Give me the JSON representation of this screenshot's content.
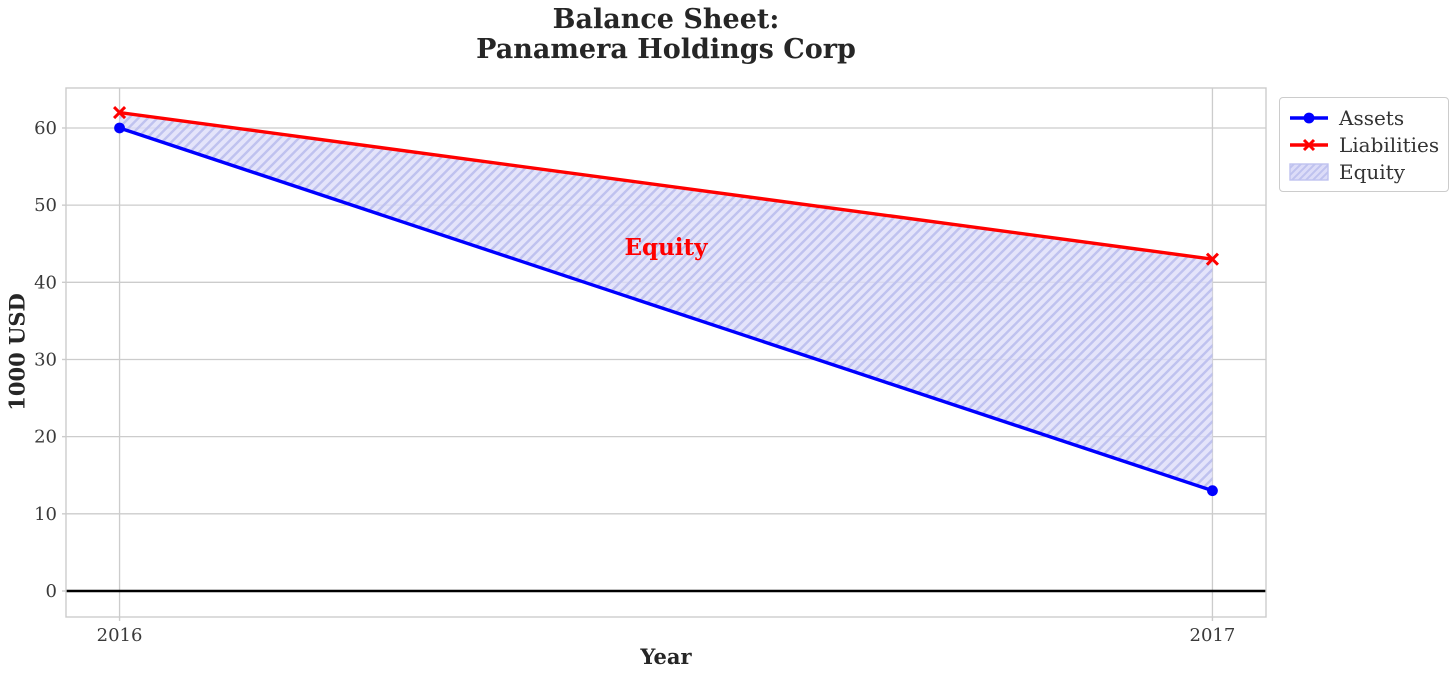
{
  "chart_data": {
    "type": "line",
    "title": "Balance Sheet:\nPanamera Holdings Corp",
    "title_lines": [
      "Balance Sheet:",
      "Panamera Holdings Corp"
    ],
    "xlabel": "Year",
    "ylabel": "1000 USD",
    "x": [
      2016,
      2017
    ],
    "series": [
      {
        "name": "Assets",
        "values": [
          60,
          13
        ],
        "color": "#0000ff",
        "marker": "circle"
      },
      {
        "name": "Liabilities",
        "values": [
          62,
          43
        ],
        "color": "#ff0000",
        "marker": "x"
      }
    ],
    "area": {
      "label": "Equity",
      "between": [
        "Assets",
        "Liabilities"
      ],
      "fill_color": "#dcdcf8",
      "hatch_color": "#bfc2ef",
      "hatch": "//"
    },
    "annotation": {
      "text": "Equity",
      "x": 2016.5,
      "y": 44.5,
      "color": "#ff0000"
    },
    "axes": {
      "xticks": [
        2016,
        2017
      ],
      "yticks": [
        0,
        10,
        20,
        30,
        40,
        50,
        60
      ],
      "xlim": [
        2015.951,
        2017.049
      ],
      "ylim": [
        -3.37,
        65.18
      ],
      "grid": true,
      "zero_line": 0
    },
    "legend": {
      "position": "outside-top-right",
      "entries": [
        {
          "label": "Assets",
          "type": "line-circle"
        },
        {
          "label": "Liabilities",
          "type": "line-x"
        },
        {
          "label": "Equity",
          "type": "hatched-patch"
        }
      ]
    },
    "style": {
      "grid_color": "#cccccc",
      "spine_color": "#cccccc",
      "tick_label_color": "#3a3a3a",
      "text_color": "#262626",
      "zero_line_color": "#000000",
      "background": "#ffffff"
    }
  }
}
